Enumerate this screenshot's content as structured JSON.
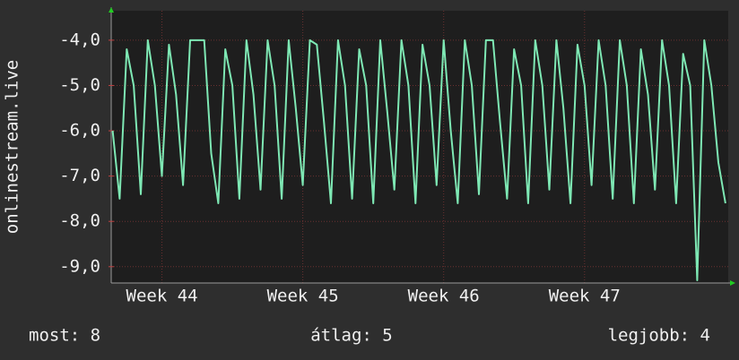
{
  "chart_data": {
    "type": "line",
    "y_label": "onlinestream.live",
    "xlim": [
      43.64,
      48.02
    ],
    "xticks": [
      {
        "value": 44,
        "label": "Week 44"
      },
      {
        "value": 45,
        "label": "Week 45"
      },
      {
        "value": 46,
        "label": "Week 46"
      },
      {
        "value": 47,
        "label": "Week 47"
      }
    ],
    "ylim": [
      -9.36,
      -3.35
    ],
    "yticks": [
      {
        "value": -4,
        "label": "-4,0"
      },
      {
        "value": -5,
        "label": "-5,0"
      },
      {
        "value": -6,
        "label": "-6,0"
      },
      {
        "value": -7,
        "label": "-7,0"
      },
      {
        "value": -8,
        "label": "-8,0"
      },
      {
        "value": -9,
        "label": "-9,0"
      }
    ],
    "grid": true,
    "series": [
      {
        "color": "#7ee8b4",
        "x": [
          43.65,
          43.7,
          43.75,
          43.8,
          43.85,
          43.9,
          43.95,
          44.0,
          44.05,
          44.1,
          44.15,
          44.2,
          44.25,
          44.3,
          44.35,
          44.4,
          44.45,
          44.5,
          44.55,
          44.6,
          44.65,
          44.7,
          44.75,
          44.8,
          44.85,
          44.9,
          44.95,
          45.0,
          45.05,
          45.1,
          45.15,
          45.2,
          45.25,
          45.3,
          45.35,
          45.4,
          45.45,
          45.5,
          45.55,
          45.6,
          45.65,
          45.7,
          45.75,
          45.8,
          45.85,
          45.9,
          45.95,
          46.0,
          46.05,
          46.1,
          46.15,
          46.2,
          46.25,
          46.3,
          46.35,
          46.4,
          46.45,
          46.5,
          46.55,
          46.6,
          46.65,
          46.7,
          46.75,
          46.8,
          46.85,
          46.9,
          46.95,
          47.0,
          47.05,
          47.1,
          47.15,
          47.2,
          47.25,
          47.3,
          47.35,
          47.4,
          47.45,
          47.5,
          47.55,
          47.6,
          47.65,
          47.7,
          47.75,
          47.8,
          47.85,
          47.9,
          47.95,
          48.0
        ],
        "values": [
          -6.0,
          -7.5,
          -4.2,
          -5.0,
          -7.4,
          -4.0,
          -5.0,
          -7.0,
          -4.1,
          -5.2,
          -7.2,
          -4.0,
          -4.0,
          -4.0,
          -6.5,
          -7.6,
          -4.2,
          -5.0,
          -7.5,
          -4.0,
          -5.2,
          -7.3,
          -4.0,
          -5.0,
          -7.5,
          -4.0,
          -5.5,
          -7.2,
          -4.0,
          -4.1,
          -5.8,
          -7.6,
          -4.0,
          -5.0,
          -7.5,
          -4.2,
          -5.0,
          -7.6,
          -4.0,
          -5.6,
          -7.3,
          -4.0,
          -5.0,
          -7.6,
          -4.1,
          -5.0,
          -7.2,
          -4.0,
          -6.0,
          -7.6,
          -4.0,
          -5.0,
          -7.4,
          -4.0,
          -4.0,
          -5.8,
          -7.5,
          -4.2,
          -5.0,
          -7.6,
          -4.0,
          -5.0,
          -7.3,
          -4.0,
          -5.5,
          -7.6,
          -4.1,
          -5.0,
          -7.2,
          -4.0,
          -5.0,
          -7.5,
          -4.0,
          -5.0,
          -7.6,
          -4.2,
          -5.2,
          -7.3,
          -4.0,
          -5.0,
          -7.6,
          -4.3,
          -5.0,
          -9.3,
          -4.0,
          -5.0,
          -6.7,
          -7.6
        ]
      }
    ],
    "stats": [
      "most: 8",
      "átlag: 5",
      "legjobb: 4"
    ]
  }
}
